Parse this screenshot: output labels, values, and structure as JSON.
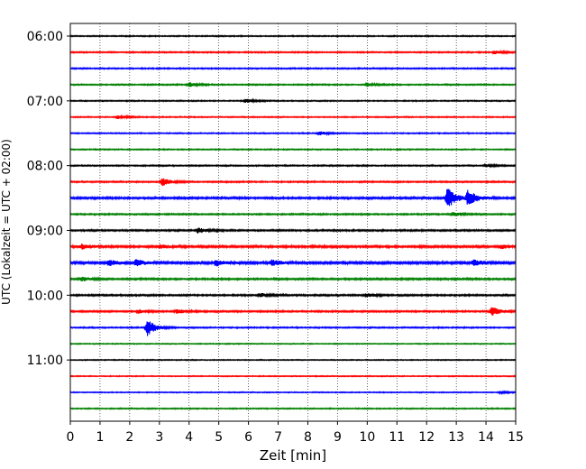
{
  "chart_data": {
    "type": "line",
    "title": "",
    "xlabel": "Zeit  [min]",
    "ylabel": "UTC (Lokalzeit = UTC + 02:00)",
    "xlim": [
      0,
      15
    ],
    "x_ticks": [
      0,
      1,
      2,
      3,
      4,
      5,
      6,
      7,
      8,
      9,
      10,
      11,
      12,
      13,
      14,
      15
    ],
    "y_tick_labels": [
      "06:00",
      "07:00",
      "08:00",
      "09:00",
      "10:00",
      "11:00"
    ],
    "grid": "vertical-dotted",
    "trace_interval_min": 15,
    "colors": [
      "#000000",
      "#ff0000",
      "#0000ff",
      "#008000"
    ],
    "traces": [
      {
        "start": "06:00",
        "noise": 0.7,
        "events": []
      },
      {
        "start": "06:15",
        "noise": 0.8,
        "events": [
          {
            "t": 14.3,
            "amp": 1.8
          }
        ]
      },
      {
        "start": "06:30",
        "noise": 0.8,
        "events": []
      },
      {
        "start": "06:45",
        "noise": 0.8,
        "events": [
          {
            "t": 4.0,
            "amp": 2.5
          },
          {
            "t": 10.0,
            "amp": 2.0
          }
        ]
      },
      {
        "start": "07:00",
        "noise": 0.7,
        "events": [
          {
            "t": 5.9,
            "amp": 2.0
          }
        ]
      },
      {
        "start": "07:15",
        "noise": 0.7,
        "events": [
          {
            "t": 1.6,
            "amp": 2.0
          }
        ]
      },
      {
        "start": "07:30",
        "noise": 0.7,
        "events": [
          {
            "t": 8.4,
            "amp": 2.0
          }
        ]
      },
      {
        "start": "07:45",
        "noise": 0.7,
        "events": []
      },
      {
        "start": "08:00",
        "noise": 0.8,
        "events": [
          {
            "t": 14.0,
            "amp": 1.5
          }
        ]
      },
      {
        "start": "08:15",
        "noise": 0.9,
        "events": [
          {
            "t": 3.1,
            "amp": 4.0
          }
        ]
      },
      {
        "start": "08:30",
        "noise": 1.2,
        "events": [
          {
            "t": 12.7,
            "amp": 12.0
          },
          {
            "t": 13.4,
            "amp": 9.0
          }
        ]
      },
      {
        "start": "08:45",
        "noise": 0.9,
        "events": [
          {
            "t": 12.9,
            "amp": 2.0
          }
        ]
      },
      {
        "start": "09:00",
        "noise": 1.0,
        "events": [
          {
            "t": 4.3,
            "amp": 3.0
          }
        ]
      },
      {
        "start": "09:15",
        "noise": 1.3,
        "events": [
          {
            "t": 0.4,
            "amp": 2.5
          },
          {
            "t": 3.0,
            "amp": 2.0
          },
          {
            "t": 14.5,
            "amp": 2.0
          }
        ]
      },
      {
        "start": "09:30",
        "noise": 1.5,
        "events": [
          {
            "t": 1.3,
            "amp": 3.0
          },
          {
            "t": 2.2,
            "amp": 3.5
          },
          {
            "t": 4.9,
            "amp": 3.5
          },
          {
            "t": 6.8,
            "amp": 3.0
          },
          {
            "t": 13.6,
            "amp": 3.0
          }
        ]
      },
      {
        "start": "09:45",
        "noise": 1.1,
        "events": [
          {
            "t": 0.4,
            "amp": 2.0
          }
        ]
      },
      {
        "start": "10:00",
        "noise": 1.0,
        "events": [
          {
            "t": 6.4,
            "amp": 2.0
          },
          {
            "t": 10.0,
            "amp": 2.0
          }
        ]
      },
      {
        "start": "10:15",
        "noise": 1.0,
        "events": [
          {
            "t": 2.3,
            "amp": 2.0
          },
          {
            "t": 3.6,
            "amp": 2.5
          },
          {
            "t": 14.2,
            "amp": 5.0
          }
        ]
      },
      {
        "start": "10:30",
        "noise": 0.8,
        "events": [
          {
            "t": 2.6,
            "amp": 9.0
          }
        ]
      },
      {
        "start": "10:45",
        "noise": 0.6,
        "events": []
      },
      {
        "start": "11:00",
        "noise": 0.6,
        "events": []
      },
      {
        "start": "11:15",
        "noise": 0.6,
        "events": []
      },
      {
        "start": "11:30",
        "noise": 0.6,
        "events": [
          {
            "t": 14.5,
            "amp": 1.2
          }
        ]
      },
      {
        "start": "11:45",
        "noise": 0.7,
        "events": []
      }
    ]
  }
}
